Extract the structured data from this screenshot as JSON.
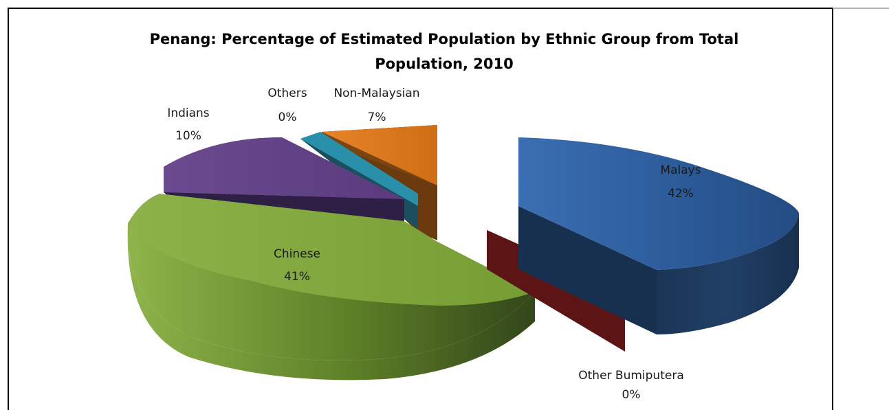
{
  "chart_data": {
    "type": "pie",
    "title_lines": [
      "Penang: Percentage of Estimated Population by Ethnic Group from Total",
      "Population, 2010"
    ],
    "slices": [
      {
        "name": "Malays",
        "percent": 42,
        "value_label": "42%",
        "color": "#2e5d9b"
      },
      {
        "name": "Other Bumiputera",
        "percent": 0,
        "value_label": "0%",
        "color": "#7a1a1a"
      },
      {
        "name": "Chinese",
        "percent": 41,
        "value_label": "41%",
        "color": "#7fa53b"
      },
      {
        "name": "Indians",
        "percent": 10,
        "value_label": "10%",
        "color": "#6a4a8c"
      },
      {
        "name": "Others",
        "percent": 0,
        "value_label": "0%",
        "color": "#2a8fa8"
      },
      {
        "name": "Non-Malaysian",
        "percent": 7,
        "value_label": "7%",
        "color": "#de7a1c"
      }
    ],
    "legend": "none",
    "style": "3d-exploded"
  }
}
